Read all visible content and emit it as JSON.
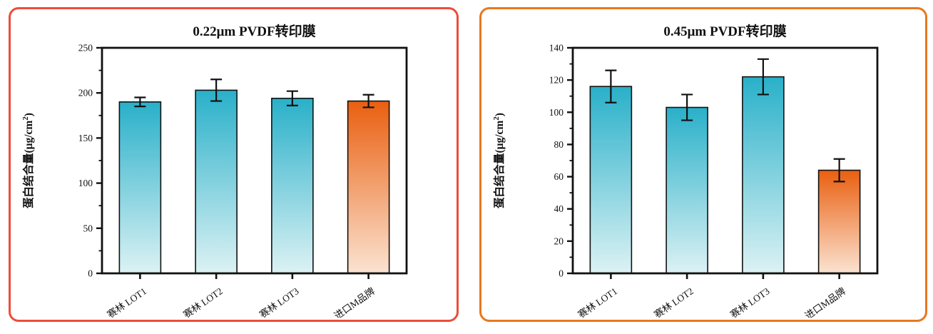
{
  "page": {
    "background_color": "#ffffff",
    "description_left_panel_border": "#ee4c3a",
    "description_right_panel_border": "#e8781e"
  },
  "colors": {
    "teal_top": "#29b0c9",
    "teal_bottom": "#dcf2f4",
    "orange_top": "#e95f10",
    "orange_bottom": "#fbe3d1",
    "frame": "#111111",
    "error_bar": "#111111",
    "panel_border_left": "#ee4c3a",
    "panel_border_right": "#e8781e"
  },
  "chart_data": [
    {
      "type": "bar",
      "title": "0.22μm PVDF转印膜",
      "xlabel": "",
      "ylabel": "蛋白结合量(μg/cm²)",
      "ylabel_parts": {
        "prefix": "蛋白结合量(μg/cm",
        "sup": "2",
        "suffix": ")"
      },
      "categories": [
        "赛林 LOT1",
        "赛林 LOT2",
        "赛林 LOT3",
        "进口M品牌"
      ],
      "values": [
        190,
        203,
        194,
        191
      ],
      "errors": [
        5,
        12,
        8,
        7
      ],
      "ylim": [
        0,
        250
      ],
      "ytick_step": 50,
      "yminor_step": 25,
      "ytick_labels": [
        "0",
        "50",
        "100",
        "150",
        "200",
        "250"
      ],
      "bar_styles": [
        "teal",
        "teal",
        "teal",
        "orange"
      ],
      "grid": false,
      "legend": null,
      "x_label_rotation_deg": -35
    },
    {
      "type": "bar",
      "title": "0.45μm PVDF转印膜",
      "xlabel": "",
      "ylabel": "蛋白结合量(μg/cm²)",
      "ylabel_parts": {
        "prefix": "蛋白结合量(μg/cm",
        "sup": "2",
        "suffix": ")"
      },
      "categories": [
        "赛林 LOT1",
        "赛林 LOT2",
        "赛林 LOT3",
        "进口M品牌"
      ],
      "values": [
        116,
        103,
        122,
        64
      ],
      "errors": [
        10,
        8,
        11,
        7
      ],
      "ylim": [
        0,
        140
      ],
      "ytick_step": 20,
      "yminor_step": 10,
      "ytick_labels": [
        "0",
        "20",
        "40",
        "60",
        "80",
        "100",
        "120",
        "140"
      ],
      "bar_styles": [
        "teal",
        "teal",
        "teal",
        "orange"
      ],
      "grid": false,
      "legend": null,
      "x_label_rotation_deg": -35
    }
  ]
}
